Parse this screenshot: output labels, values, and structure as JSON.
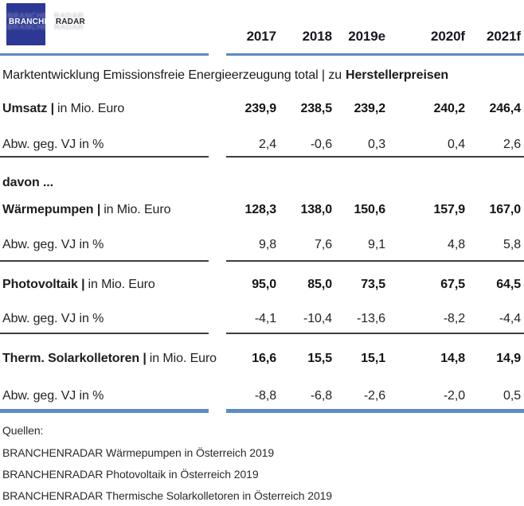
{
  "logo": {
    "name": "BRANCHENRADAR",
    "part_white": "BRANCHEN",
    "part_dark": "RADAR"
  },
  "header": {
    "years": [
      "2017",
      "2018",
      "2019e",
      "2020f",
      "2021f"
    ]
  },
  "title": {
    "text": "Marktentwicklung Emissionsfreie Energieerzeugung total | zu",
    "highlight": "Herstellerpreisen"
  },
  "table": {
    "intro": "davon ...",
    "rows": [
      {
        "label_bold": "Umsatz |",
        "label_rest": "in Mio. Euro",
        "values": [
          "239,9",
          "238,5",
          "239,2",
          "240,2",
          "246,4"
        ]
      },
      {
        "label": "Abw. geg. VJ in %",
        "values": [
          "2,4",
          "-0,6",
          "0,3",
          "0,4",
          "2,6"
        ]
      },
      {
        "label_bold": "Wärmepumpen |",
        "label_rest": "in Mio. Euro",
        "values": [
          "128,3",
          "138,0",
          "150,6",
          "157,9",
          "167,0"
        ]
      },
      {
        "label": "Abw. geg. VJ in %",
        "values": [
          "9,8",
          "7,6",
          "9,1",
          "4,8",
          "5,8"
        ]
      },
      {
        "label_bold": "Photovoltaik |",
        "label_rest": "in Mio. Euro",
        "values": [
          "95,0",
          "85,0",
          "73,5",
          "67,5",
          "64,5"
        ]
      },
      {
        "label": "Abw. geg. VJ in %",
        "values": [
          "-4,1",
          "-10,4",
          "-13,6",
          "-8,2",
          "-4,4"
        ]
      },
      {
        "label_bold": "Therm. Solarkolletoren |",
        "label_rest": "in Mio. Euro",
        "values": [
          "16,6",
          "15,5",
          "15,1",
          "14,8",
          "14,9"
        ]
      },
      {
        "label": "Abw. geg. VJ in %",
        "values": [
          "-8,8",
          "-6,8",
          "-2,6",
          "-2,0",
          "0,5"
        ]
      }
    ]
  },
  "sources": {
    "heading": "Quellen:",
    "items": [
      "BRANCHENRADAR Wärmepumpen in Österreich 2019",
      "BRANCHENRADAR Photovoltaik in Österreich 2019",
      "BRANCHENRADAR Thermische Solarkolletoren in Österreich 2019"
    ]
  },
  "colors": {
    "accent_blue": "#5b8cc2",
    "logo_blue": "#2c3894",
    "divider_gray": "#3e3e3e",
    "text_dark": "#1d1d1d"
  }
}
